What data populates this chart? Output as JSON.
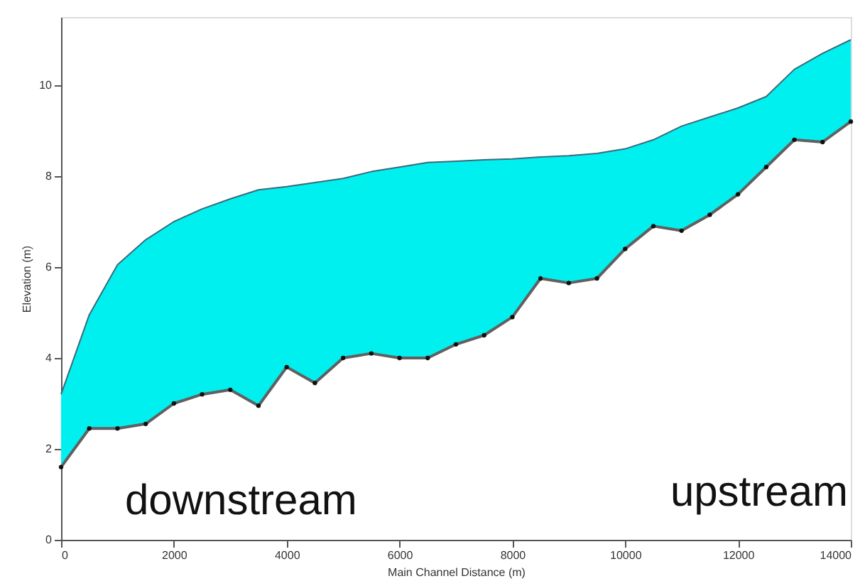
{
  "chart_data": {
    "type": "line",
    "xlabel": "Main Channel Distance (m)",
    "ylabel": "Elevation (m)",
    "x": [
      0,
      500,
      1000,
      1500,
      2000,
      2500,
      3000,
      3500,
      4000,
      4500,
      5000,
      5500,
      6000,
      6500,
      7000,
      7500,
      8000,
      8500,
      9000,
      9500,
      10000,
      10500,
      11000,
      11500,
      12000,
      12500,
      13000,
      13500,
      14000
    ],
    "series": [
      {
        "type": "area",
        "color": "#00f0f0",
        "values": [
          3.2,
          4.95,
          6.05,
          6.6,
          7.0,
          7.28,
          7.5,
          7.7,
          7.77,
          7.86,
          7.95,
          8.1,
          8.2,
          8.3,
          8.33,
          8.36,
          8.38,
          8.42,
          8.45,
          8.5,
          8.6,
          8.8,
          9.1,
          9.3,
          9.5,
          9.75,
          10.35,
          10.7,
          11.0
        ]
      },
      {
        "color": "#606060",
        "marker": "circle",
        "values": [
          1.6,
          2.45,
          2.45,
          2.55,
          3.0,
          3.2,
          3.3,
          2.95,
          3.8,
          3.45,
          4.0,
          4.1,
          4.0,
          4.0,
          4.3,
          4.5,
          4.9,
          5.75,
          5.65,
          5.75,
          6.4,
          6.9,
          6.8,
          7.15,
          7.6,
          8.2,
          8.8,
          8.75,
          9.2
        ]
      }
    ],
    "xlim": [
      0,
      14000
    ],
    "xticks": [
      0,
      2000,
      4000,
      6000,
      8000,
      10000,
      12000,
      14000
    ],
    "ylim": [
      0,
      11.5
    ],
    "yticks": [
      0,
      2,
      4,
      6,
      8,
      10
    ],
    "grid": false,
    "annotations": [
      "downstream",
      "upstream"
    ]
  }
}
